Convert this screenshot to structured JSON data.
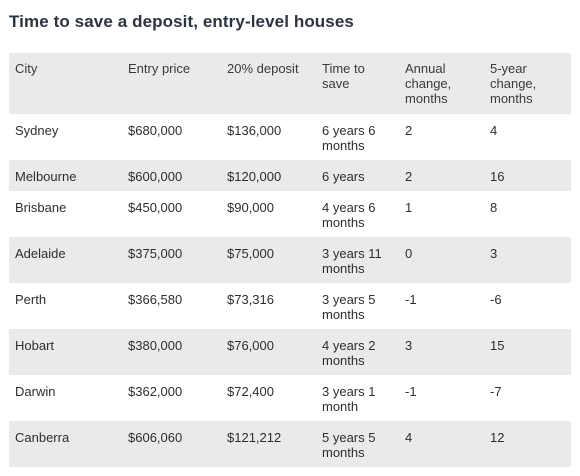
{
  "title": "Time to save a deposit, entry-level houses",
  "table": {
    "headers": [
      "City",
      "Entry price",
      "20% deposit",
      "Time to save",
      "Annual change, months",
      "5-year change, months"
    ],
    "rows": [
      [
        "Sydney",
        "$680,000",
        "$136,000",
        "6 years 6 months",
        "2",
        "4"
      ],
      [
        "Melbourne",
        "$600,000",
        "$120,000",
        "6 years",
        "2",
        "16"
      ],
      [
        "Brisbane",
        "$450,000",
        "$90,000",
        "4 years 6 months",
        "1",
        "8"
      ],
      [
        "Adelaide",
        "$375,000",
        "$75,000",
        "3 years 11 months",
        "0",
        "3"
      ],
      [
        "Perth",
        "$366,580",
        "$73,316",
        "3 years 5 months",
        "-1",
        "-6"
      ],
      [
        "Hobart",
        "$380,000",
        "$76,000",
        "4 years 2 months",
        "3",
        "15"
      ],
      [
        "Darwin",
        "$362,000",
        "$72,400",
        "3 years 1 month",
        "-1",
        "-7"
      ],
      [
        "Canberra",
        "$606,060",
        "$121,212",
        "5 years 5 months",
        "4",
        "12"
      ]
    ]
  },
  "colors": {
    "shade": "#e8eaec",
    "title": "#2c3440",
    "text": "#2e2e2e"
  }
}
